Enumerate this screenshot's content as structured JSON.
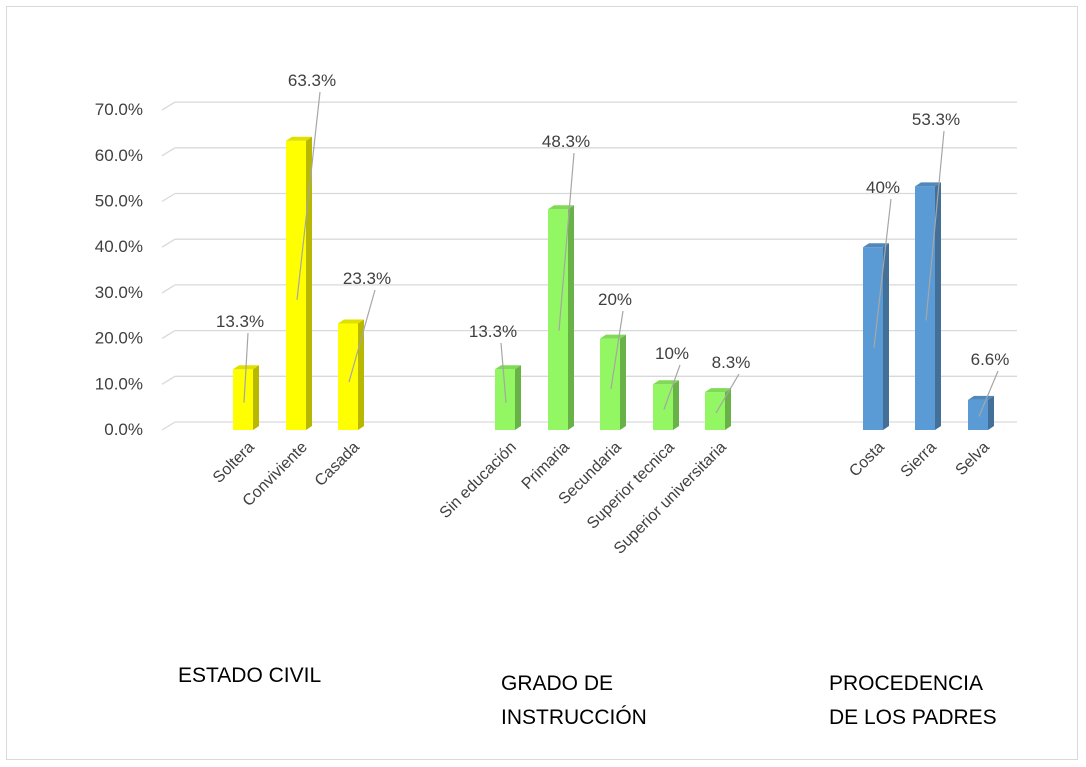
{
  "chart_data": {
    "type": "bar",
    "style": "3d-column",
    "ylim": [
      0,
      70
    ],
    "y_ticks": [
      "0.0%",
      "10.0%",
      "20.0%",
      "30.0%",
      "40.0%",
      "50.0%",
      "60.0%",
      "70.0%"
    ],
    "grid": true,
    "legend": "none",
    "groups": [
      {
        "label": "ESTADO CIVIL",
        "color": "#ffff00",
        "categories": [
          "Soltera",
          "Conviviente",
          "Casada"
        ],
        "values": [
          13.3,
          63.3,
          23.3
        ],
        "data_labels": [
          "13.3%",
          "63.3%",
          "23.3%"
        ]
      },
      {
        "label_lines": [
          "GRADO DE",
          "INSTRUCCIÓN"
        ],
        "color": "#92f763",
        "categories": [
          "Sin educación",
          "Primaria",
          "Secundaria",
          "Superior tecnica",
          "Superior universitaria"
        ],
        "values": [
          13.3,
          48.3,
          20,
          10,
          8.3
        ],
        "data_labels": [
          "13.3%",
          "48.3%",
          "20%",
          "10%",
          "8.3%"
        ]
      },
      {
        "label_lines": [
          "PROCEDENCIA",
          "DE LOS PADRES"
        ],
        "color": "#5b9bd5",
        "categories": [
          "Costa",
          "Sierra",
          "Selva"
        ],
        "values": [
          40,
          53.3,
          6.6
        ],
        "data_labels": [
          "40%",
          "53.3%",
          "6.6%"
        ]
      }
    ]
  }
}
